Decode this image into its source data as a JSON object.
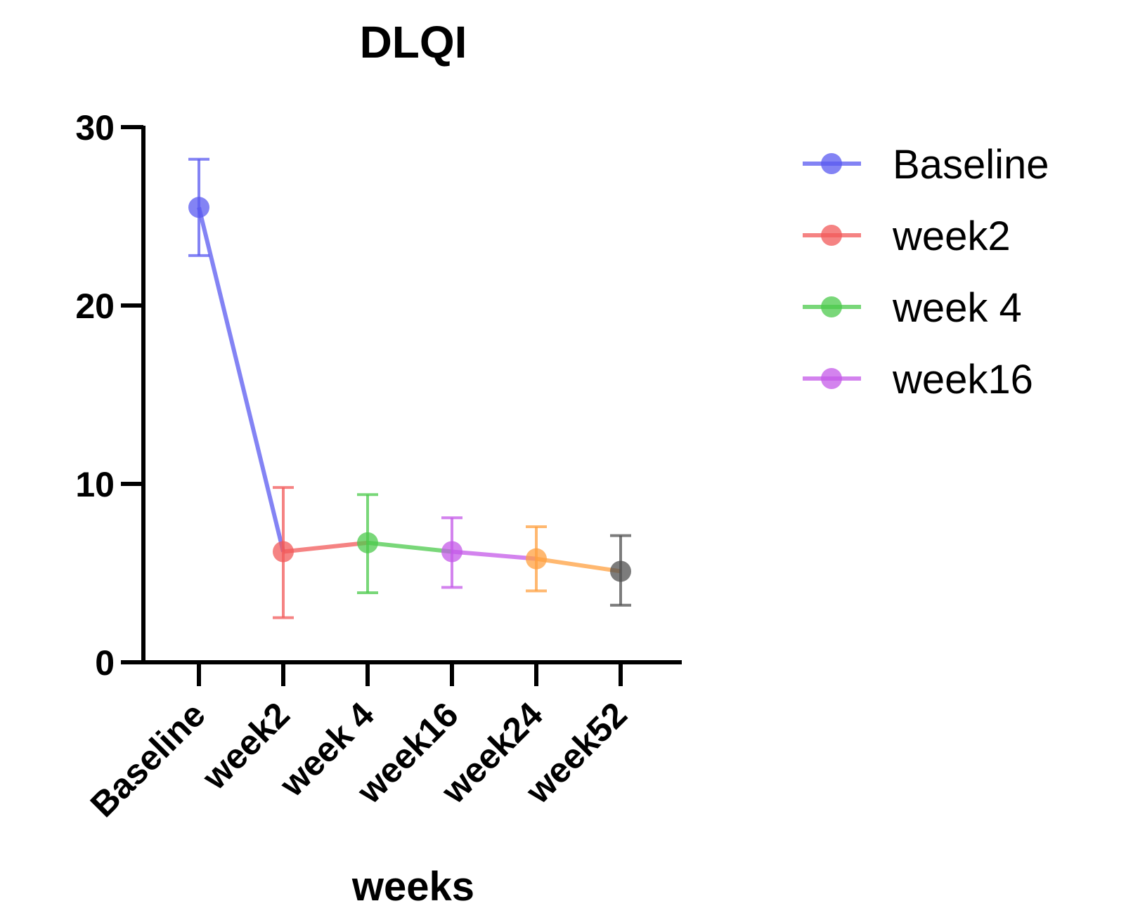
{
  "chart_data": {
    "type": "line",
    "title": "DLQI",
    "xlabel": "weeks",
    "ylabel": "",
    "categories": [
      "Baseline",
      "week2",
      "week 4",
      "week16",
      "week24",
      "week52"
    ],
    "ylim": [
      0,
      30
    ],
    "yticks": [
      0,
      10,
      20,
      30
    ],
    "grid": false,
    "legend_position": "top-right",
    "points": [
      {
        "category": "Baseline",
        "mean": 25.5,
        "lower": 22.8,
        "upper": 28.2,
        "color": "#5a5af0"
      },
      {
        "category": "week2",
        "mean": 6.2,
        "lower": 2.5,
        "upper": 9.8,
        "color": "#f25a5a"
      },
      {
        "category": "week 4",
        "mean": 6.7,
        "lower": 3.9,
        "upper": 9.4,
        "color": "#4cc94c"
      },
      {
        "category": "week16",
        "mean": 6.2,
        "lower": 4.2,
        "upper": 8.1,
        "color": "#c45ae8"
      },
      {
        "category": "week24",
        "mean": 5.8,
        "lower": 4.0,
        "upper": 7.6,
        "color": "#ffa040"
      },
      {
        "category": "week52",
        "mean": 5.1,
        "lower": 3.2,
        "upper": 7.1,
        "color": "#505050"
      }
    ],
    "legend": [
      {
        "label": "Baseline",
        "color": "#5a5af0"
      },
      {
        "label": "week2",
        "color": "#f25a5a"
      },
      {
        "label": "week 4",
        "color": "#4cc94c"
      },
      {
        "label": "week16",
        "color": "#c45ae8"
      }
    ]
  }
}
